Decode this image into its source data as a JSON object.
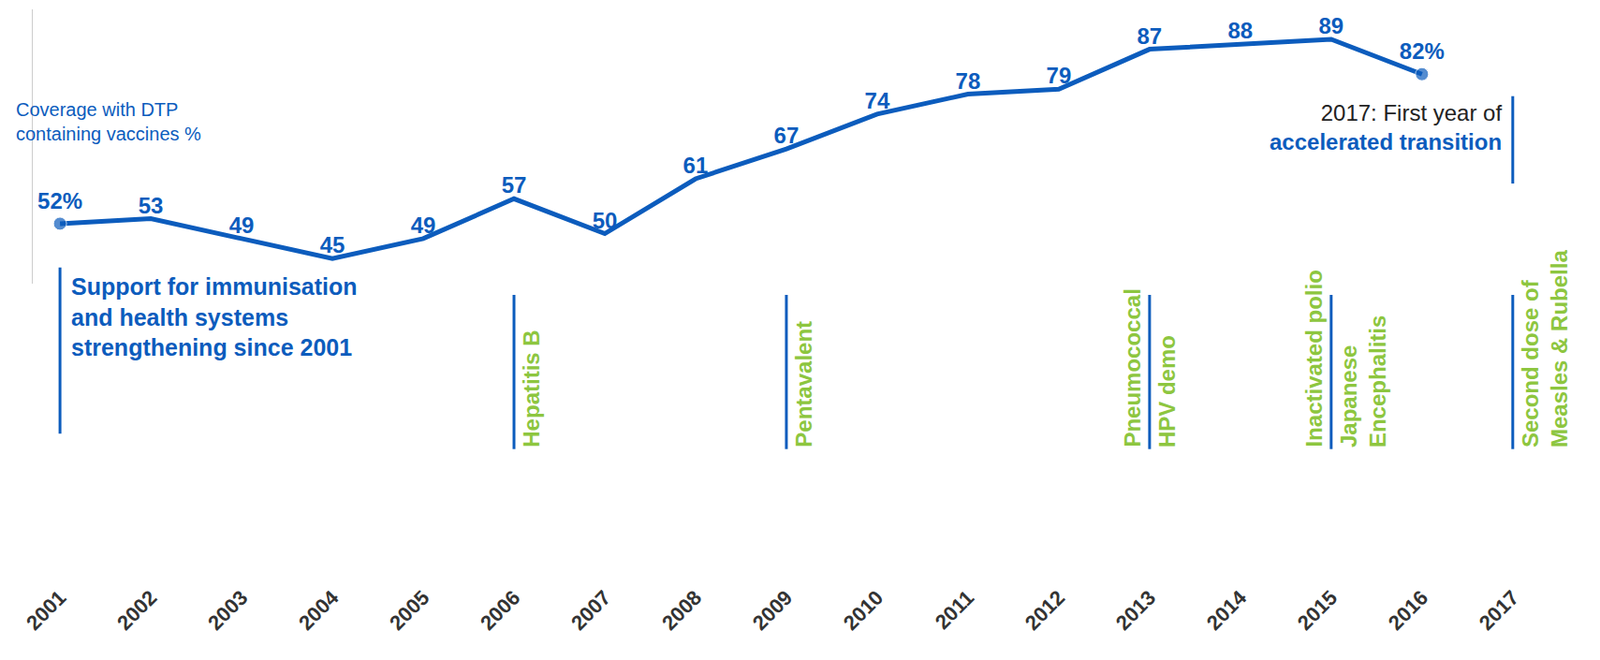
{
  "chart_data": {
    "type": "line",
    "y_label": "Coverage with DTP containing vaccines %",
    "categories": [
      "2001",
      "2002",
      "2003",
      "2004",
      "2005",
      "2006",
      "2007",
      "2008",
      "2009",
      "2010",
      "2011",
      "2012",
      "2013",
      "2014",
      "2015",
      "2016",
      "2017"
    ],
    "values": [
      52,
      53,
      49,
      45,
      49,
      57,
      50,
      61,
      67,
      74,
      78,
      79,
      87,
      88,
      89,
      82,
      null
    ],
    "value_labels": [
      "52%",
      "53",
      "49",
      "45",
      "49",
      "57",
      "50",
      "61",
      "67",
      "74",
      "78",
      "79",
      "87",
      "88",
      "89",
      "82%",
      null
    ],
    "data_labels": true,
    "color": "#0c5cbd",
    "marker": "circle",
    "ylim": [
      40,
      95
    ],
    "tick_labels": "x",
    "grid": false,
    "support_note": {
      "year": "2001",
      "lines": [
        "Support for immunisation",
        "and health systems",
        "strengthening since 2001"
      ]
    },
    "transition_note": {
      "year": "2017",
      "lines": [
        "2017: First year of",
        "accelerated transition"
      ]
    },
    "milestones": [
      {
        "year": "2006",
        "left": [],
        "right": [
          "Hepatitis B"
        ]
      },
      {
        "year": "2009",
        "left": [],
        "right": [
          "Pentavalent"
        ]
      },
      {
        "year": "2013",
        "left": [
          "Pneumococcal"
        ],
        "right": [
          "HPV demo"
        ]
      },
      {
        "year": "2015",
        "left": [
          "Inactivated polio"
        ],
        "right": [
          "Japanese",
          "Encephalitis"
        ]
      },
      {
        "year": "2017",
        "left": [],
        "right": [
          "Second dose of",
          "Measles & Rubella"
        ]
      }
    ],
    "milestone_color": "#8dc63f"
  }
}
